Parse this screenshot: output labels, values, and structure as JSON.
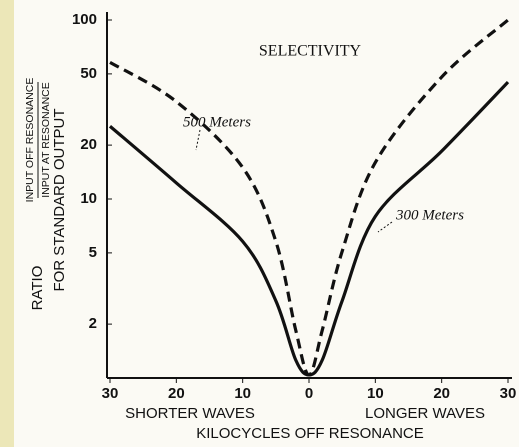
{
  "chart_data": {
    "type": "line",
    "title": "SELECTIVITY",
    "y_label_prefix": "RATIO",
    "y_label_numerator": "INPUT OFF RESONANCE",
    "y_label_denominator": "INPUT AT RESONANCE",
    "y_label_suffix": "FOR STANDARD OUTPUT",
    "x_label_left": "SHORTER WAVES",
    "x_label_right": "LONGER WAVES",
    "x_label": "KILOCYCLES OFF RESONANCE",
    "x": [
      -30,
      -20,
      -10,
      -5,
      -2,
      0,
      2,
      5,
      10,
      20,
      30
    ],
    "series": [
      {
        "name": "300 Meters",
        "color": "#111111",
        "dash": false,
        "values": [
          25.5,
          12.3,
          5.8,
          2.7,
          1.26,
          1.04,
          1.26,
          2.7,
          8,
          18.5,
          45
        ]
      },
      {
        "name": "500 Meters",
        "color": "#111111",
        "dash": true,
        "values": [
          58,
          35,
          15,
          5.8,
          1.85,
          1.04,
          1.85,
          5.1,
          16,
          48,
          100
        ]
      }
    ],
    "xlim": [
      -30,
      30
    ],
    "xticks": [
      {
        "value": -30,
        "label": "30"
      },
      {
        "value": -20,
        "label": "20"
      },
      {
        "value": -10,
        "label": "10"
      },
      0,
      10,
      20,
      30
    ],
    "ylim": [
      1,
      100
    ],
    "yticks": [
      2,
      5,
      10,
      20,
      50,
      100
    ],
    "log_scale": true,
    "grid": false
  }
}
